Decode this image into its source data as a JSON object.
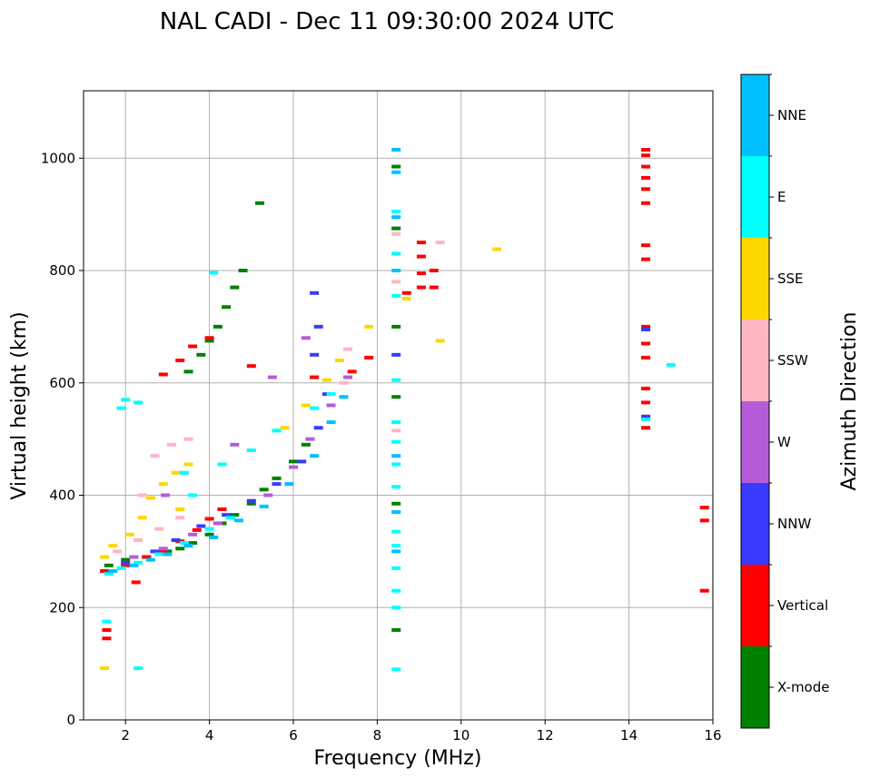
{
  "chart_data": {
    "type": "scatter",
    "title": "NAL CADI - Dec 11 09:30:00 2024 UTC",
    "xlabel": "Frequency (MHz)",
    "ylabel": "Virtual height (km)",
    "xlim": [
      1,
      16
    ],
    "ylim": [
      0,
      1120
    ],
    "xticks": [
      2,
      4,
      6,
      8,
      10,
      12,
      14,
      16
    ],
    "yticks": [
      0,
      200,
      400,
      600,
      800,
      1000
    ],
    "grid": true,
    "colorbar": {
      "label": "Azimuth Direction",
      "categories": [
        "X-mode",
        "Vertical",
        "NNW",
        "W",
        "SSW",
        "SSE",
        "E",
        "NNE"
      ],
      "colors": [
        "#008000",
        "#ff0000",
        "#3a3aff",
        "#b65bd8",
        "#ffb6c1",
        "#ffd700",
        "#00ffff",
        "#00bfff"
      ]
    },
    "clusters": [
      {
        "category": "X-mode",
        "points": [
          [
            1.6,
            275
          ],
          [
            2.0,
            285
          ],
          [
            2.5,
            290
          ],
          [
            3.0,
            300
          ],
          [
            3.3,
            305
          ],
          [
            3.6,
            315
          ],
          [
            4.0,
            330
          ],
          [
            4.3,
            350
          ],
          [
            4.6,
            365
          ],
          [
            5.0,
            385
          ],
          [
            5.3,
            410
          ],
          [
            5.6,
            430
          ],
          [
            6.0,
            460
          ],
          [
            6.3,
            490
          ],
          [
            3.5,
            620
          ],
          [
            3.8,
            650
          ],
          [
            4.0,
            675
          ],
          [
            4.2,
            700
          ],
          [
            4.4,
            735
          ],
          [
            4.6,
            770
          ],
          [
            4.8,
            800
          ],
          [
            5.2,
            920
          ],
          [
            8.45,
            985
          ],
          [
            8.45,
            875
          ],
          [
            8.45,
            700
          ],
          [
            8.45,
            575
          ],
          [
            8.45,
            385
          ],
          [
            8.45,
            160
          ]
        ]
      },
      {
        "category": "Vertical",
        "points": [
          [
            1.5,
            265
          ],
          [
            2.0,
            275
          ],
          [
            2.5,
            290
          ],
          [
            2.9,
            300
          ],
          [
            3.3,
            318
          ],
          [
            3.7,
            338
          ],
          [
            4.0,
            358
          ],
          [
            4.3,
            375
          ],
          [
            2.9,
            615
          ],
          [
            3.3,
            640
          ],
          [
            3.6,
            665
          ],
          [
            4.0,
            680
          ],
          [
            5.0,
            630
          ],
          [
            6.5,
            610
          ],
          [
            7.4,
            620
          ],
          [
            7.8,
            645
          ],
          [
            8.7,
            760
          ],
          [
            9.05,
            770
          ],
          [
            9.05,
            795
          ],
          [
            9.05,
            825
          ],
          [
            9.05,
            850
          ],
          [
            9.35,
            800
          ],
          [
            9.35,
            770
          ],
          [
            14.4,
            520
          ],
          [
            14.4,
            540
          ],
          [
            14.4,
            565
          ],
          [
            14.4,
            590
          ],
          [
            14.4,
            645
          ],
          [
            14.4,
            670
          ],
          [
            14.4,
            700
          ],
          [
            14.4,
            820
          ],
          [
            14.4,
            845
          ],
          [
            14.4,
            920
          ],
          [
            14.4,
            945
          ],
          [
            14.4,
            965
          ],
          [
            14.4,
            985
          ],
          [
            14.4,
            1005
          ],
          [
            14.4,
            1015
          ],
          [
            15.8,
            230
          ],
          [
            15.8,
            355
          ],
          [
            15.8,
            378
          ],
          [
            1.55,
            145
          ],
          [
            1.55,
            160
          ],
          [
            2.25,
            245
          ]
        ]
      },
      {
        "category": "NNW",
        "points": [
          [
            2.0,
            280
          ],
          [
            2.7,
            300
          ],
          [
            3.2,
            320
          ],
          [
            3.8,
            345
          ],
          [
            4.4,
            365
          ],
          [
            5.0,
            390
          ],
          [
            5.6,
            420
          ],
          [
            6.2,
            460
          ],
          [
            6.6,
            520
          ],
          [
            6.8,
            580
          ],
          [
            6.5,
            650
          ],
          [
            6.6,
            700
          ],
          [
            6.5,
            760
          ],
          [
            8.45,
            650
          ],
          [
            14.4,
            540
          ],
          [
            14.4,
            695
          ]
        ]
      },
      {
        "category": "W",
        "points": [
          [
            2.2,
            290
          ],
          [
            2.9,
            305
          ],
          [
            3.6,
            330
          ],
          [
            4.2,
            350
          ],
          [
            5.4,
            400
          ],
          [
            6.0,
            450
          ],
          [
            6.4,
            500
          ],
          [
            6.9,
            560
          ],
          [
            7.3,
            610
          ],
          [
            6.3,
            680
          ],
          [
            5.5,
            610
          ],
          [
            2.95,
            400
          ],
          [
            4.6,
            490
          ]
        ]
      },
      {
        "category": "SSW",
        "points": [
          [
            1.8,
            300
          ],
          [
            2.3,
            320
          ],
          [
            2.8,
            340
          ],
          [
            3.3,
            360
          ],
          [
            2.7,
            470
          ],
          [
            3.1,
            490
          ],
          [
            3.5,
            500
          ],
          [
            2.4,
            400
          ],
          [
            7.2,
            600
          ],
          [
            7.3,
            660
          ],
          [
            8.45,
            515
          ],
          [
            8.45,
            780
          ],
          [
            8.45,
            865
          ],
          [
            9.5,
            850
          ]
        ]
      },
      {
        "category": "SSE",
        "points": [
          [
            1.5,
            290
          ],
          [
            1.7,
            310
          ],
          [
            2.1,
            330
          ],
          [
            2.4,
            360
          ],
          [
            2.6,
            395
          ],
          [
            2.9,
            420
          ],
          [
            3.2,
            440
          ],
          [
            3.5,
            455
          ],
          [
            3.3,
            375
          ],
          [
            5.8,
            520
          ],
          [
            6.3,
            560
          ],
          [
            6.8,
            605
          ],
          [
            7.1,
            640
          ],
          [
            7.8,
            700
          ],
          [
            8.7,
            750
          ],
          [
            9.5,
            675
          ],
          [
            10.85,
            838
          ],
          [
            1.5,
            92
          ]
        ]
      },
      {
        "category": "E",
        "points": [
          [
            1.6,
            260
          ],
          [
            1.9,
            270
          ],
          [
            2.3,
            280
          ],
          [
            2.8,
            295
          ],
          [
            3.4,
            315
          ],
          [
            4.0,
            340
          ],
          [
            4.5,
            360
          ],
          [
            3.4,
            440
          ],
          [
            3.6,
            400
          ],
          [
            4.3,
            455
          ],
          [
            5.0,
            480
          ],
          [
            5.6,
            515
          ],
          [
            6.5,
            555
          ],
          [
            6.9,
            580
          ],
          [
            1.9,
            555
          ],
          [
            2.0,
            570
          ],
          [
            2.3,
            565
          ],
          [
            4.1,
            796
          ],
          [
            8.45,
            310
          ],
          [
            8.45,
            270
          ],
          [
            8.45,
            230
          ],
          [
            8.45,
            200
          ],
          [
            8.45,
            90
          ],
          [
            8.45,
            335
          ],
          [
            8.45,
            415
          ],
          [
            8.45,
            455
          ],
          [
            8.45,
            495
          ],
          [
            8.45,
            530
          ],
          [
            8.45,
            605
          ],
          [
            8.45,
            755
          ],
          [
            8.45,
            830
          ],
          [
            8.45,
            905
          ],
          [
            14.4,
            535
          ],
          [
            15.0,
            632
          ],
          [
            2.3,
            92
          ],
          [
            1.55,
            175
          ]
        ]
      },
      {
        "category": "NNE",
        "points": [
          [
            1.7,
            265
          ],
          [
            2.2,
            275
          ],
          [
            2.6,
            285
          ],
          [
            3.0,
            295
          ],
          [
            3.5,
            310
          ],
          [
            4.1,
            325
          ],
          [
            4.7,
            355
          ],
          [
            5.3,
            380
          ],
          [
            5.9,
            420
          ],
          [
            6.5,
            470
          ],
          [
            6.9,
            530
          ],
          [
            7.2,
            575
          ],
          [
            8.45,
            1015
          ],
          [
            8.45,
            975
          ],
          [
            8.45,
            895
          ],
          [
            8.45,
            800
          ],
          [
            8.45,
            470
          ],
          [
            8.45,
            370
          ],
          [
            8.45,
            300
          ]
        ]
      }
    ]
  }
}
